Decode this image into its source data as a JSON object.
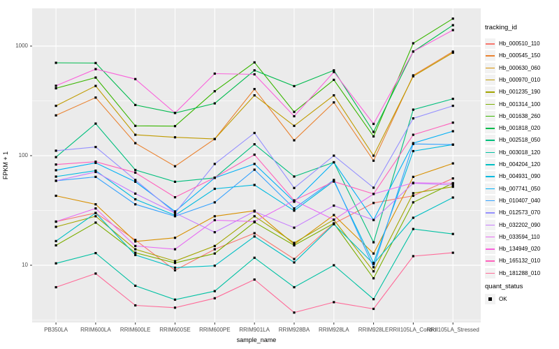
{
  "figure": {
    "y_axis_title": "FPKM + 1",
    "x_axis_title": "sample_name",
    "ytick_labels": [
      "10",
      "100",
      "1000"
    ],
    "panel_bg": "#EBEBEB",
    "grid_color": "#FFFFFF",
    "tick_text_color": "#4d4d4d",
    "marker_color": "#000000"
  },
  "legend": {
    "tracking_title": "tracking_id",
    "quant_title": "quant_status",
    "quant_items": [
      {
        "label": "OK",
        "marker": "black-square"
      }
    ]
  },
  "chart_data": {
    "type": "line",
    "title": "",
    "xlabel": "sample_name",
    "ylabel": "FPKM + 1",
    "y_scale": "log10",
    "ylim": [
      3,
      2240
    ],
    "yticks": [
      10,
      100,
      1000
    ],
    "minor_gridlines": [
      3.162,
      31.62,
      316.2
    ],
    "grid": true,
    "legend_position": "right",
    "legend_title": "tracking_id",
    "point_marker": "filled-black-square",
    "quant_status_legend": {
      "title": "quant_status",
      "items": [
        "OK"
      ]
    },
    "categories": [
      "PB350LA",
      "RRIM600LA",
      "RRIM600LE",
      "RRIM600SE",
      "RRIM600PE",
      "RRIM901LA",
      "RRIM928BA",
      "RRIM928LA",
      "RRIM928LE",
      "RRII105LA_Control",
      "RRII105LA_Stressed"
    ],
    "series": [
      {
        "name": "Hb_000510_110",
        "color": "#F8766D",
        "values": [
          25,
          30,
          17,
          9,
          14,
          19.6,
          11.4,
          24,
          37,
          43,
          62
        ]
      },
      {
        "name": "Hb_000545_150",
        "color": "#EA8331",
        "values": [
          233,
          339,
          130,
          80,
          142,
          405,
          138,
          306,
          90,
          540,
          890
        ]
      },
      {
        "name": "Hb_000630_060",
        "color": "#D89000",
        "values": [
          43,
          36,
          16.5,
          17.8,
          28,
          31.4,
          15.5,
          28.7,
          12.8,
          64,
          85
        ]
      },
      {
        "name": "Hb_000970_010",
        "color": "#C09B00",
        "values": [
          285,
          433,
          155,
          147,
          142,
          355,
          187,
          355,
          100,
          530,
          870
        ]
      },
      {
        "name": "Hb_001235_190",
        "color": "#A3A500",
        "values": [
          22.4,
          28,
          14,
          10.9,
          15,
          28,
          16,
          26,
          8.8,
          45.4,
          52
        ]
      },
      {
        "name": "Hb_001314_100",
        "color": "#7CAE00",
        "values": [
          15.2,
          24.5,
          13,
          10.5,
          12.8,
          24.7,
          15.2,
          24.1,
          7.6,
          37.5,
          56
        ]
      },
      {
        "name": "Hb_001638_260",
        "color": "#39B600",
        "values": [
          412,
          516,
          187,
          186,
          387,
          710,
          251,
          492,
          150,
          1060,
          1780
        ]
      },
      {
        "name": "Hb_001818_020",
        "color": "#00BB4E",
        "values": [
          703,
          700,
          290,
          245,
          300,
          600,
          431,
          600,
          165,
          890,
          1550
        ]
      },
      {
        "name": "Hb_002518_050",
        "color": "#00BF7D",
        "values": [
          97,
          196,
          74,
          57.8,
          62.7,
          127,
          64.5,
          87,
          16.2,
          263,
          330
        ]
      },
      {
        "name": "Hb_003018_120",
        "color": "#00C1A3",
        "values": [
          10.4,
          12.9,
          6.5,
          4.85,
          5.8,
          11.7,
          6.3,
          10,
          4.9,
          21.4,
          19.3
        ]
      },
      {
        "name": "Hb_004204_120",
        "color": "#00BFC4",
        "values": [
          16.6,
          30,
          12.4,
          9.5,
          9.9,
          18.3,
          10.6,
          23.7,
          10.3,
          27.1,
          41.5
        ]
      },
      {
        "name": "Hb_004931_090",
        "color": "#00BAE0",
        "values": [
          64.4,
          73,
          40,
          28.6,
          49.8,
          54,
          31.5,
          58.6,
          10.5,
          110,
          126
        ]
      },
      {
        "name": "Hb_007741_050",
        "color": "#00B0F6",
        "values": [
          73.6,
          86,
          57.8,
          31,
          62.7,
          84,
          38,
          87,
          25.9,
          130,
          167
        ]
      },
      {
        "name": "Hb_010407_040",
        "color": "#35A2FF",
        "values": [
          59,
          64,
          36,
          28,
          37.5,
          74.5,
          33,
          60,
          9.6,
          128,
          126
        ]
      },
      {
        "name": "Hb_012573_070",
        "color": "#9590FF",
        "values": [
          111,
          120,
          60,
          30,
          84,
          161,
          50.7,
          100,
          51,
          219,
          285
        ]
      },
      {
        "name": "Hb_032202_090",
        "color": "#C77CFF",
        "values": [
          59,
          71,
          45,
          30,
          20,
          31,
          22,
          35,
          25.9,
          56,
          54
        ]
      },
      {
        "name": "Hb_033594_110",
        "color": "#E76BF3",
        "values": [
          25,
          33,
          15,
          14,
          25.8,
          25,
          39,
          26,
          44.7,
          56.5,
          56
        ]
      },
      {
        "name": "Hb_134949_020",
        "color": "#FA62DB",
        "values": [
          434,
          616,
          500,
          245,
          560,
          552,
          229,
          580,
          195,
          890,
          1400
        ]
      },
      {
        "name": "Hb_165132_010",
        "color": "#FF62BC",
        "values": [
          83,
          88,
          70,
          41.7,
          63,
          102,
          39,
          58,
          44.7,
          155,
          200
        ]
      },
      {
        "name": "Hb_181288_010",
        "color": "#FF6A98",
        "values": [
          6.3,
          8.4,
          4.3,
          4.1,
          5.0,
          7.4,
          3.7,
          4.6,
          4.0,
          12.1,
          13
        ]
      }
    ]
  }
}
